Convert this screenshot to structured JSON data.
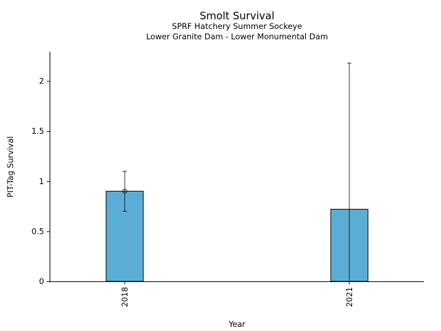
{
  "chart_data": {
    "type": "bar",
    "title": "Smolt Survival",
    "subtitle_lines": [
      "SPRF Hatchery Summer Sockeye",
      "Lower Granite Dam - Lower Monumental Dam"
    ],
    "xlabel": "Year",
    "ylabel": "PIT-Tag Survival",
    "categories": [
      "2018",
      "2021"
    ],
    "values": [
      0.9,
      0.72
    ],
    "error_low": [
      0.7,
      0.0
    ],
    "error_high": [
      1.1,
      2.18
    ],
    "point_markers": [
      true,
      false
    ],
    "ylim": [
      0,
      2.28
    ],
    "yticks": [
      0,
      0.5,
      1,
      1.5,
      2
    ],
    "ytick_labels": [
      "0",
      "0.5",
      "1",
      "1.5",
      "2"
    ],
    "grid": false,
    "bar_color": "#5aaed6",
    "edge_color": "#000000"
  }
}
